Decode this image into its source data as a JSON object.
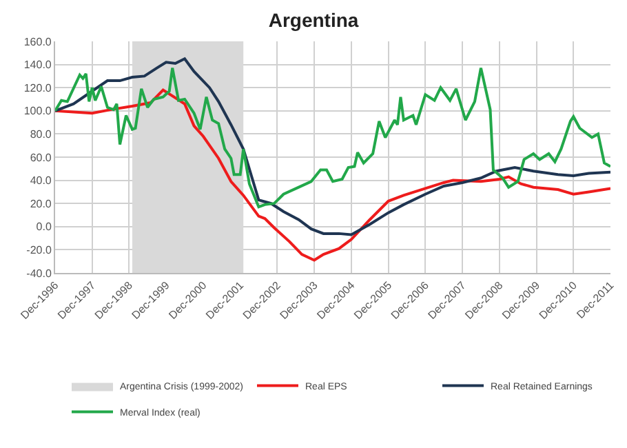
{
  "chart_data": {
    "type": "line",
    "title": "Argentina",
    "xlim": [
      "1996-12",
      "2011-12"
    ],
    "xticks": [
      {
        "value": "1996-12",
        "label": "Dec-1996"
      },
      {
        "value": "1997-12",
        "label": "Dec-1997"
      },
      {
        "value": "1998-12",
        "label": "Dec-1998"
      },
      {
        "value": "1999-12",
        "label": "Dec-1999"
      },
      {
        "value": "2000-12",
        "label": "Dec-2000"
      },
      {
        "value": "2001-12",
        "label": "Dec-2001"
      },
      {
        "value": "2002-12",
        "label": "Dec-2002"
      },
      {
        "value": "2003-12",
        "label": "Dec-2003"
      },
      {
        "value": "2004-12",
        "label": "Dec-2004"
      },
      {
        "value": "2005-12",
        "label": "Dec-2005"
      },
      {
        "value": "2006-12",
        "label": "Dec-2006"
      },
      {
        "value": "2007-12",
        "label": "Dec-2007"
      },
      {
        "value": "2008-12",
        "label": "Dec-2008"
      },
      {
        "value": "2009-12",
        "label": "Dec-2009"
      },
      {
        "value": "2010-12",
        "label": "Dec-2010"
      },
      {
        "value": "2011-12",
        "label": "Dec-2011"
      }
    ],
    "ylim": [
      -40,
      160
    ],
    "yticks": [
      {
        "value": -40,
        "label": "-40.0"
      },
      {
        "value": -20,
        "label": "-20.0"
      },
      {
        "value": 0,
        "label": "0.0"
      },
      {
        "value": 20,
        "label": "20.0"
      },
      {
        "value": 40,
        "label": "40.0"
      },
      {
        "value": 60,
        "label": "60.0"
      },
      {
        "value": 80,
        "label": "80.0"
      },
      {
        "value": 100,
        "label": "100.0"
      },
      {
        "value": 120,
        "label": "120.0"
      },
      {
        "value": 140,
        "label": "140.0"
      },
      {
        "value": 160,
        "label": "160.0"
      }
    ],
    "grid": true,
    "legend": "bottom",
    "marker": "none",
    "line_style": "solid",
    "bands": [
      {
        "axis": "x",
        "from": "1999-01",
        "to": "2002-01",
        "label": "Argentina Crisis (1999-2002)",
        "color": "#d9d9d9"
      }
    ],
    "series": [
      {
        "name": "Real EPS",
        "color": "#ee1c1c",
        "x": [
          "1996-12",
          "1997-12",
          "1998-06",
          "1999-01",
          "1999-07",
          "1999-11",
          "2000-06",
          "2000-09",
          "2000-12",
          "2001-05",
          "2001-09",
          "2002-01",
          "2002-06",
          "2002-08",
          "2002-11",
          "2003-04",
          "2003-08",
          "2003-12",
          "2004-03",
          "2004-08",
          "2004-12",
          "2005-06",
          "2005-12",
          "2006-05",
          "2006-12",
          "2007-06",
          "2007-09",
          "2008-06",
          "2008-12",
          "2009-03",
          "2009-07",
          "2009-11",
          "2010-07",
          "2010-12",
          "2011-05",
          "2011-12"
        ],
        "values": [
          100,
          98,
          101,
          104,
          107,
          118,
          106,
          87,
          78,
          59,
          39,
          27,
          9,
          7,
          -1,
          -13,
          -24,
          -29,
          -24,
          -19,
          -11,
          6,
          22,
          27,
          33,
          38,
          40,
          39,
          41,
          43,
          37,
          34,
          32,
          28,
          30,
          33
        ]
      },
      {
        "name": "Real Retained Earnings",
        "color": "#1f3552",
        "x": [
          "1996-12",
          "1997-06",
          "1997-12",
          "1998-05",
          "1998-09",
          "1999-01",
          "1999-05",
          "1999-09",
          "1999-12",
          "2000-03",
          "2000-06",
          "2000-09",
          "2001-02",
          "2001-05",
          "2001-09",
          "2002-01",
          "2002-06",
          "2002-10",
          "2003-02",
          "2003-07",
          "2003-11",
          "2004-03",
          "2004-08",
          "2004-12",
          "2005-06",
          "2005-12",
          "2006-05",
          "2006-12",
          "2007-06",
          "2007-12",
          "2008-06",
          "2008-11",
          "2009-05",
          "2009-11",
          "2010-07",
          "2010-12",
          "2011-05",
          "2011-12"
        ],
        "values": [
          100,
          106,
          117,
          126,
          126,
          129,
          130,
          137,
          142,
          141,
          145,
          134,
          120,
          108,
          88,
          67,
          23,
          20,
          13,
          6,
          -2,
          -6,
          -6,
          -7,
          2,
          12,
          19,
          28,
          35,
          38,
          42,
          48,
          51,
          48,
          45,
          44,
          46,
          47
        ]
      },
      {
        "name": "Merval Index (real)",
        "color": "#22a84a",
        "x": [
          "1996-12",
          "1997-02",
          "1997-04",
          "1997-08",
          "1997-09",
          "1997-10",
          "1997-11",
          "1997-12",
          "1998-01",
          "1998-03",
          "1998-05",
          "1998-07",
          "1998-08",
          "1998-09",
          "1998-11",
          "1999-01",
          "1999-02",
          "1999-04",
          "1999-06",
          "1999-08",
          "1999-11",
          "2000-01",
          "2000-02",
          "2000-04",
          "2000-06",
          "2000-09",
          "2000-11",
          "2001-01",
          "2001-03",
          "2001-05",
          "2001-07",
          "2001-09",
          "2001-10",
          "2001-12",
          "2002-01",
          "2002-03",
          "2002-06",
          "2002-08",
          "2002-11",
          "2003-02",
          "2003-07",
          "2003-11",
          "2004-02",
          "2004-04",
          "2004-06",
          "2004-09",
          "2004-11",
          "2005-01",
          "2005-02",
          "2005-04",
          "2005-07",
          "2005-09",
          "2005-11",
          "2006-02",
          "2006-03",
          "2006-04",
          "2006-05",
          "2006-08",
          "2006-09",
          "2006-12",
          "2007-03",
          "2007-05",
          "2007-08",
          "2007-10",
          "2008-01",
          "2008-04",
          "2008-06",
          "2008-09",
          "2008-10",
          "2009-01",
          "2009-03",
          "2009-06",
          "2009-08",
          "2009-11",
          "2010-01",
          "2010-04",
          "2010-06",
          "2010-08",
          "2010-11",
          "2010-12",
          "2011-02",
          "2011-06",
          "2011-08",
          "2011-10",
          "2011-12"
        ],
        "values": [
          100,
          109,
          108,
          131,
          128,
          132,
          108,
          120,
          109,
          121,
          103,
          101,
          106,
          71,
          96,
          84,
          85,
          119,
          103,
          110,
          112,
          117,
          137,
          109,
          110,
          98,
          84,
          112,
          92,
          89,
          67,
          59,
          45,
          45,
          67,
          37,
          17,
          19,
          20,
          28,
          34,
          39,
          49,
          49,
          39,
          41,
          51,
          52,
          64,
          55,
          63,
          91,
          77,
          92,
          88,
          112,
          92,
          96,
          88,
          114,
          109,
          120,
          109,
          119,
          92,
          108,
          137,
          101,
          49,
          42,
          34,
          39,
          58,
          63,
          58,
          63,
          56,
          67,
          91,
          95,
          85,
          77,
          80,
          55,
          52
        ]
      }
    ]
  }
}
